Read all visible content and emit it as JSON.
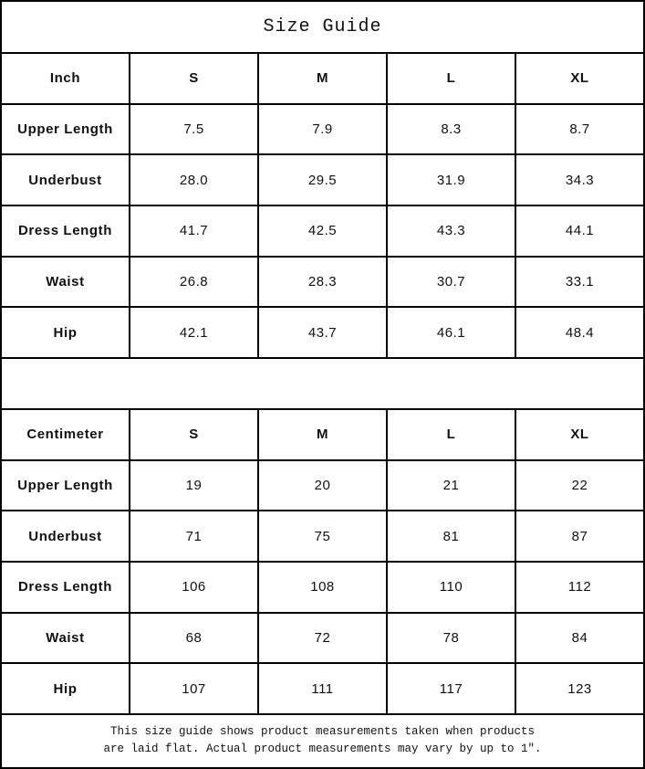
{
  "title": "Size Guide",
  "tables": {
    "inch": {
      "unit_label": "Inch",
      "sizes": [
        "S",
        "M",
        "L",
        "XL"
      ],
      "rows": [
        {
          "label": "Upper Length",
          "values": [
            "7.5",
            "7.9",
            "8.3",
            "8.7"
          ]
        },
        {
          "label": "Underbust",
          "values": [
            "28.0",
            "29.5",
            "31.9",
            "34.3"
          ]
        },
        {
          "label": "Dress Length",
          "values": [
            "41.7",
            "42.5",
            "43.3",
            "44.1"
          ]
        },
        {
          "label": "Waist",
          "values": [
            "26.8",
            "28.3",
            "30.7",
            "33.1"
          ]
        },
        {
          "label": "Hip",
          "values": [
            "42.1",
            "43.7",
            "46.1",
            "48.4"
          ]
        }
      ]
    },
    "centimeter": {
      "unit_label": "Centimeter",
      "sizes": [
        "S",
        "M",
        "L",
        "XL"
      ],
      "rows": [
        {
          "label": "Upper Length",
          "values": [
            "19",
            "20",
            "21",
            "22"
          ]
        },
        {
          "label": "Underbust",
          "values": [
            "71",
            "75",
            "81",
            "87"
          ]
        },
        {
          "label": "Dress Length",
          "values": [
            "106",
            "108",
            "110",
            "112"
          ]
        },
        {
          "label": "Waist",
          "values": [
            "68",
            "72",
            "78",
            "84"
          ]
        },
        {
          "label": "Hip",
          "values": [
            "107",
            "111",
            "117",
            "123"
          ]
        }
      ]
    }
  },
  "footer": {
    "line1": "This size guide shows product measurements taken when products",
    "line2": "are laid flat. Actual product measurements may vary by up to 1″."
  },
  "colors": {
    "border": "#000000",
    "background": "#ffffff",
    "text": "#111111"
  }
}
